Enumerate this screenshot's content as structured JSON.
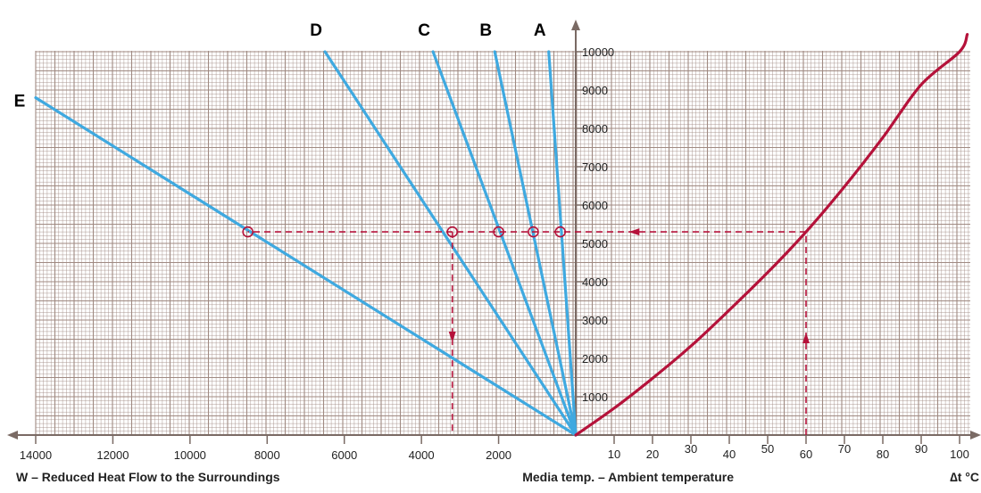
{
  "chart_data": {
    "type": "line",
    "title": "",
    "left_axis": {
      "label": "W – Reduced Heat Flow to the Surroundings",
      "range": [
        0,
        14000
      ],
      "ticks": [
        14000,
        12000,
        10000,
        8000,
        6000,
        4000,
        2000
      ]
    },
    "right_axis": {
      "label": "Media temp. – Ambient temperature",
      "unit": "∆t °C",
      "range": [
        0,
        100
      ],
      "ticks": [
        10,
        20,
        30,
        40,
        50,
        60,
        70,
        80,
        90,
        100
      ]
    },
    "y_axis": {
      "range": [
        0,
        10000
      ],
      "ticks": [
        1000,
        2000,
        3000,
        4000,
        5000,
        6000,
        7000,
        8000,
        9000,
        10000
      ]
    },
    "grid": true,
    "series": [
      {
        "name": "A",
        "points": [
          [
            0,
            0
          ],
          [
            700,
            10000
          ]
        ]
      },
      {
        "name": "B",
        "points": [
          [
            0,
            0
          ],
          [
            2100,
            10000
          ]
        ]
      },
      {
        "name": "C",
        "points": [
          [
            0,
            0
          ],
          [
            3700,
            10000
          ]
        ]
      },
      {
        "name": "D",
        "points": [
          [
            0,
            0
          ],
          [
            6500,
            10000
          ]
        ]
      },
      {
        "name": "E",
        "points": [
          [
            0,
            0
          ],
          [
            14000,
            8800
          ]
        ]
      }
    ],
    "curve": {
      "x": [
        0,
        10,
        20,
        30,
        40,
        50,
        60,
        70,
        80,
        90,
        100,
        102
      ],
      "y": [
        0,
        700,
        1480,
        2320,
        3260,
        4240,
        5300,
        6480,
        7760,
        9140,
        10000,
        10450
      ]
    },
    "example": {
      "delta_t": 60,
      "heat_flow_level": 5300,
      "intersections_w": [
        400,
        1100,
        2000,
        3200,
        8500
      ],
      "result_w": 3200
    },
    "colors": {
      "grid": "#a08a82",
      "lines": "#3fa9e0",
      "curve": "#b5123a",
      "dashed": "#b5123a",
      "axis": "#7a6a64"
    }
  }
}
